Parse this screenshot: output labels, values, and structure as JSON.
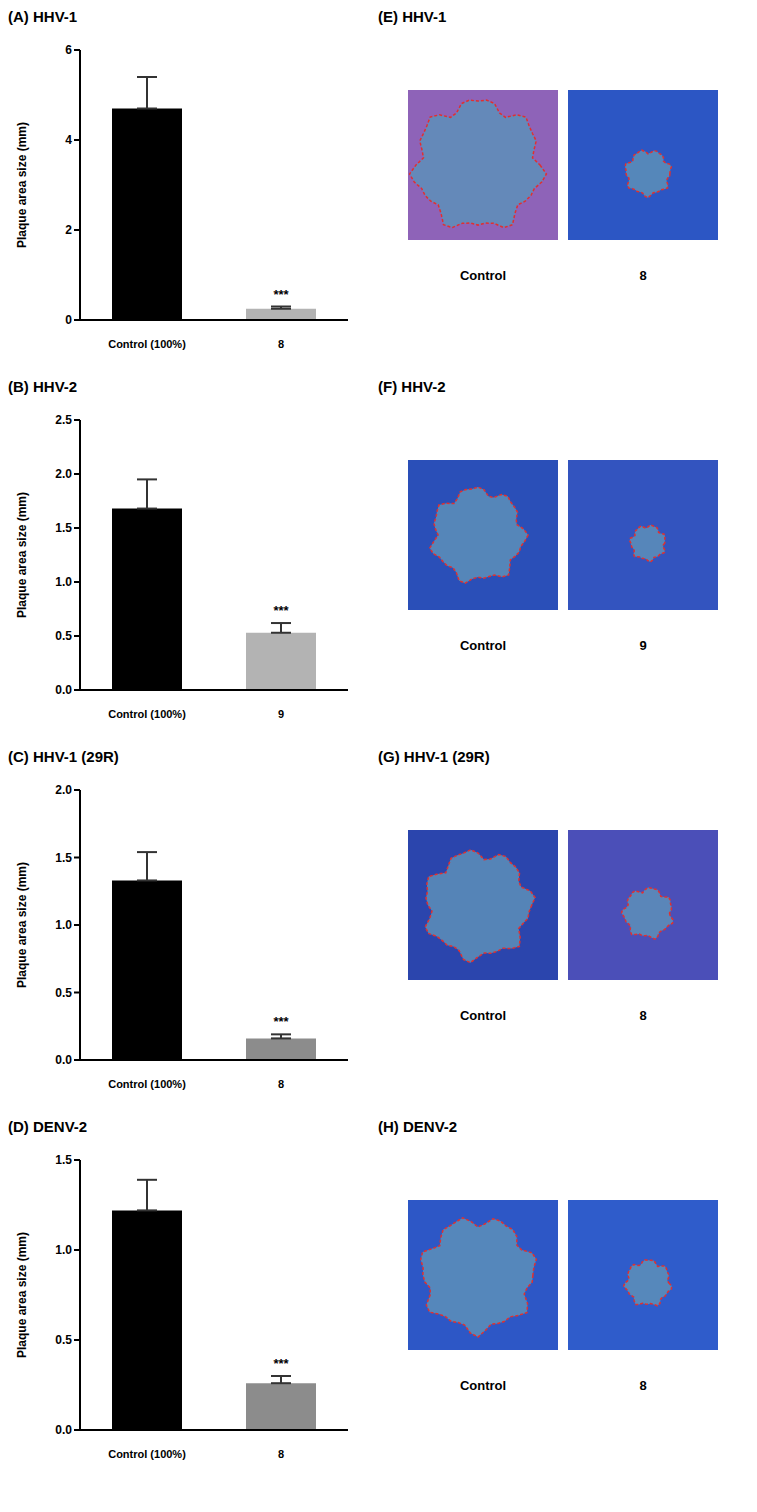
{
  "chart_data": [
    {
      "type": "bar",
      "title": "(A) HHV-1",
      "y_label": "Plaque area size (mm)",
      "categories": [
        "Control (100%)",
        "8"
      ],
      "values": [
        4.7,
        0.25
      ],
      "errors": [
        0.7,
        0.05
      ],
      "colors": [
        "#000000",
        "#b3b3b3"
      ],
      "ylim": [
        0,
        6
      ],
      "yticks": [
        0,
        2,
        4,
        6
      ],
      "annotations": [
        {
          "category": "8",
          "text": "***"
        }
      ]
    },
    {
      "type": "bar",
      "title": "(B) HHV-2",
      "y_label": "Plaque area size (mm)",
      "categories": [
        "Control (100%)",
        "9"
      ],
      "values": [
        1.68,
        0.53
      ],
      "errors": [
        0.27,
        0.09
      ],
      "colors": [
        "#000000",
        "#b3b3b3"
      ],
      "ylim": [
        0,
        2.5
      ],
      "yticks": [
        {
          "value": 0,
          "label": "0.0"
        },
        0.5,
        {
          "value": 1,
          "label": "1.0"
        },
        1.5,
        {
          "value": 2,
          "label": "2.0"
        },
        2.5
      ],
      "annotations": [
        {
          "category": "9",
          "text": "***"
        }
      ]
    },
    {
      "type": "bar",
      "title": "(C) HHV-1 (29R)",
      "y_label": "Plaque area size (mm)",
      "categories": [
        "Control (100%)",
        "8"
      ],
      "values": [
        1.33,
        0.16
      ],
      "errors": [
        0.21,
        0.03
      ],
      "colors": [
        "#000000",
        "#8c8c8c"
      ],
      "ylim": [
        0,
        2
      ],
      "yticks": [
        {
          "value": 0,
          "label": "0.0"
        },
        0.5,
        {
          "value": 1,
          "label": "1.0"
        },
        1.5,
        {
          "value": 2,
          "label": "2.0"
        }
      ],
      "annotations": [
        {
          "category": "8",
          "text": "***"
        }
      ]
    },
    {
      "type": "bar",
      "title": "(D) DENV-2",
      "y_label": "Plaque area size (mm)",
      "categories": [
        "Control (100%)",
        "8"
      ],
      "values": [
        1.22,
        0.26
      ],
      "errors": [
        0.17,
        0.04
      ],
      "colors": [
        "#000000",
        "#8c8c8c"
      ],
      "ylim": [
        0,
        1.5
      ],
      "yticks": [
        {
          "value": 0,
          "label": "0.0"
        },
        0.5,
        {
          "value": 1,
          "label": "1.0"
        },
        1.5
      ],
      "annotations": [
        {
          "category": "8",
          "text": "***"
        }
      ]
    }
  ],
  "images": [
    {
      "title": "(E) HHV-1",
      "labels": [
        "Control",
        "8"
      ]
    },
    {
      "title": "(F) HHV-2",
      "labels": [
        "Control",
        "9"
      ]
    },
    {
      "title": "(G) HHV-1 (29R)",
      "labels": [
        "Control",
        "8"
      ]
    },
    {
      "title": "(H) DENV-2",
      "labels": [
        "Control",
        "8"
      ]
    }
  ]
}
